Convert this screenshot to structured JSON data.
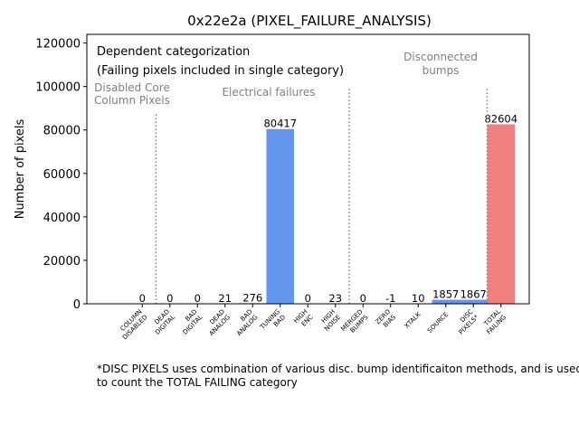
{
  "chart_data": {
    "type": "bar",
    "title": "0x22e2a (PIXEL_FAILURE_ANALYSIS)",
    "xlabel": "",
    "ylabel": "Number of pixels",
    "ylim": [
      0,
      124000
    ],
    "yticks": [
      0,
      20000,
      40000,
      60000,
      80000,
      100000,
      120000
    ],
    "categories": [
      {
        "label": [
          "COLUMN",
          "DISABLED"
        ],
        "value": 0,
        "label_text": "0",
        "color": "#6495ed"
      },
      {
        "label": [
          "DEAD",
          "DIGITAL"
        ],
        "value": 0,
        "label_text": "0",
        "color": "#6495ed"
      },
      {
        "label": [
          "BAD",
          "DIGITAL"
        ],
        "value": 0,
        "label_text": "0",
        "color": "#6495ed"
      },
      {
        "label": [
          "DEAD",
          "ANALOG"
        ],
        "value": 21,
        "label_text": "21",
        "color": "#6495ed"
      },
      {
        "label": [
          "BAD",
          "ANALOG"
        ],
        "value": 276,
        "label_text": "276",
        "color": "#6495ed"
      },
      {
        "label": [
          "TUNING",
          "BAD"
        ],
        "value": 80417,
        "label_text": "80417",
        "color": "#6495ed"
      },
      {
        "label": [
          "HIGH",
          "ENC"
        ],
        "value": 0,
        "label_text": "0",
        "color": "#6495ed"
      },
      {
        "label": [
          "HIGH",
          "NOISE"
        ],
        "value": 23,
        "label_text": "23",
        "color": "#6495ed"
      },
      {
        "label": [
          "MERGED",
          "BUMPS"
        ],
        "value": 0,
        "label_text": "0",
        "color": "#6495ed"
      },
      {
        "label": [
          "ZERO",
          "BIAS"
        ],
        "value": -1,
        "label_text": "-1",
        "color": "#6495ed"
      },
      {
        "label": [
          "XTALK"
        ],
        "value": 10,
        "label_text": "10",
        "color": "#6495ed"
      },
      {
        "label": [
          "SOURCE"
        ],
        "value": 1857,
        "label_text": "1857",
        "color": "#6495ed"
      },
      {
        "label": [
          "DISC",
          "PIXELS*"
        ],
        "value": 1867,
        "label_text": "1867",
        "color": "#6495ed"
      },
      {
        "label": [
          "TOTAL",
          "FAILING"
        ],
        "value": 82604,
        "label_text": "82604",
        "color": "#f08080"
      }
    ],
    "legend_lines": [
      "Dependent categorization",
      "(Failing pixels included in single category)"
    ],
    "group_labels": [
      {
        "lines": [
          "Disabled Core",
          "Column Pixels"
        ]
      },
      {
        "lines": [
          "Electrical failures"
        ]
      },
      {
        "lines": [
          "Disconnected",
          "bumps"
        ]
      }
    ],
    "separators": [
      {
        "between": [
          "COLUMN DISABLED",
          "DEAD DIGITAL"
        ],
        "top_value": 88000
      },
      {
        "between": [
          "HIGH NOISE",
          "MERGED BUMPS"
        ],
        "top_value": 99000
      },
      {
        "between": [
          "DISC PIXELS*",
          "TOTAL FAILING"
        ],
        "top_value": 99000
      }
    ],
    "footnote": "*DISC PIXELS uses combination of various disc. bump identificaiton methods, and is used to count the TOTAL FAILING category"
  }
}
